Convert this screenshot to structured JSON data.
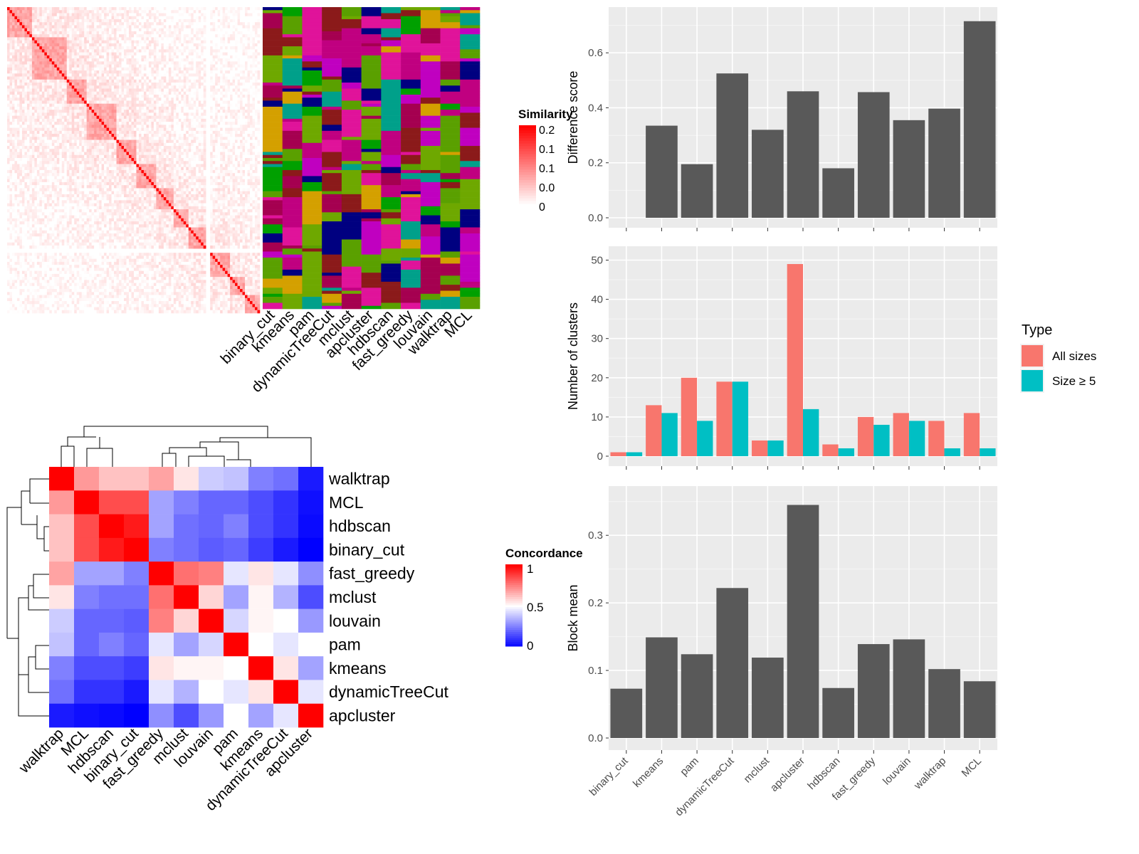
{
  "methods_order": [
    "binary_cut",
    "kmeans",
    "pam",
    "dynamicTreeCut",
    "mclust",
    "apcluster",
    "hdbscan",
    "fast_greedy",
    "louvain",
    "walktrap",
    "MCL"
  ],
  "similarity_legend": {
    "title": "Similarity",
    "ticks": [
      "0.2",
      "0.1",
      "0.1",
      "0.0",
      "0"
    ]
  },
  "concordance_legend": {
    "title": "Concordance",
    "ticks": [
      "1",
      "0.5",
      "0"
    ]
  },
  "chart_data": [
    {
      "type": "heatmap",
      "name": "similarity_matrix",
      "description_visible": "Similarity matrix with diagonal blocks and cluster membership columns"
    },
    {
      "type": "heatmap",
      "name": "concordance",
      "rows": [
        "walktrap",
        "MCL",
        "hdbscan",
        "binary_cut",
        "fast_greedy",
        "mclust",
        "louvain",
        "pam",
        "kmeans",
        "dynamicTreeCut",
        "apcluster"
      ],
      "columns": [
        "walktrap",
        "MCL",
        "hdbscan",
        "binary_cut",
        "fast_greedy",
        "mclust",
        "louvain",
        "pam",
        "kmeans",
        "dynamicTreeCut",
        "apcluster"
      ],
      "values": [
        [
          1.0,
          0.7,
          0.62,
          0.62,
          0.68,
          0.55,
          0.4,
          0.38,
          0.25,
          0.22,
          0.05
        ],
        [
          0.7,
          1.0,
          0.85,
          0.85,
          0.32,
          0.25,
          0.2,
          0.2,
          0.15,
          0.1,
          0.03
        ],
        [
          0.62,
          0.85,
          1.0,
          0.95,
          0.32,
          0.22,
          0.2,
          0.25,
          0.15,
          0.1,
          0.02
        ],
        [
          0.62,
          0.85,
          0.95,
          1.0,
          0.25,
          0.22,
          0.18,
          0.2,
          0.12,
          0.05,
          0.0
        ],
        [
          0.68,
          0.32,
          0.32,
          0.25,
          1.0,
          0.78,
          0.75,
          0.45,
          0.55,
          0.45,
          0.28
        ],
        [
          0.55,
          0.25,
          0.22,
          0.22,
          0.78,
          1.0,
          0.58,
          0.32,
          0.52,
          0.35,
          0.15
        ],
        [
          0.4,
          0.2,
          0.2,
          0.18,
          0.75,
          0.58,
          1.0,
          0.42,
          0.52,
          0.5,
          0.3
        ],
        [
          0.38,
          0.2,
          0.25,
          0.2,
          0.45,
          0.32,
          0.42,
          1.0,
          0.5,
          0.45,
          0.5
        ],
        [
          0.25,
          0.15,
          0.15,
          0.12,
          0.55,
          0.52,
          0.52,
          0.5,
          1.0,
          0.55,
          0.32
        ],
        [
          0.22,
          0.1,
          0.1,
          0.05,
          0.45,
          0.35,
          0.5,
          0.45,
          0.55,
          1.0,
          0.45
        ],
        [
          0.05,
          0.03,
          0.02,
          0.0,
          0.28,
          0.15,
          0.3,
          0.5,
          0.32,
          0.45,
          1.0
        ]
      ],
      "scale": [
        0,
        1
      ]
    },
    {
      "type": "bar",
      "name": "difference_score",
      "ylabel": "Difference score",
      "categories": [
        "binary_cut",
        "kmeans",
        "pam",
        "dynamicTreeCut",
        "mclust",
        "apcluster",
        "hdbscan",
        "fast_greedy",
        "louvain",
        "walktrap",
        "MCL"
      ],
      "values": [
        0.0,
        0.335,
        0.195,
        0.525,
        0.32,
        0.46,
        0.18,
        0.457,
        0.355,
        0.397,
        0.715
      ],
      "ylim": [
        0,
        0.72
      ],
      "yticks": [
        "0.0",
        "0.2",
        "0.4",
        "0.6"
      ]
    },
    {
      "type": "bar",
      "name": "number_of_clusters",
      "ylabel": "Number of clusters",
      "categories": [
        "binary_cut",
        "kmeans",
        "pam",
        "dynamicTreeCut",
        "mclust",
        "apcluster",
        "hdbscan",
        "fast_greedy",
        "louvain",
        "walktrap",
        "MCL"
      ],
      "series": [
        {
          "name": "All sizes",
          "values": [
            1,
            13,
            20,
            19,
            4,
            49,
            3,
            10,
            11,
            9,
            11
          ]
        },
        {
          "name": "Size ≥ 5",
          "values": [
            1,
            11,
            9,
            19,
            4,
            12,
            2,
            8,
            9,
            2,
            2
          ]
        }
      ],
      "legend": {
        "title": "Type",
        "position": "right"
      },
      "ylim": [
        0,
        50
      ],
      "yticks": [
        "0",
        "10",
        "20",
        "30",
        "40",
        "50"
      ]
    },
    {
      "type": "bar",
      "name": "block_mean",
      "ylabel": "Block mean",
      "categories": [
        "binary_cut",
        "kmeans",
        "pam",
        "dynamicTreeCut",
        "mclust",
        "apcluster",
        "hdbscan",
        "fast_greedy",
        "louvain",
        "walktrap",
        "MCL"
      ],
      "values": [
        0.073,
        0.149,
        0.124,
        0.222,
        0.119,
        0.345,
        0.074,
        0.139,
        0.146,
        0.102,
        0.084
      ],
      "ylim": [
        0,
        0.345
      ],
      "yticks": [
        "0.0",
        "0.1",
        "0.2",
        "0.3"
      ]
    }
  ],
  "colors": {
    "bar": "#595959",
    "all_sizes": "#F8766D",
    "size_ge_5": "#00BFC4",
    "panel_bg": "#EBEBEB",
    "grid": "#FFFFFF",
    "high": "#FF0000",
    "mid": "#FFFFFF",
    "low": "#0000FF"
  }
}
